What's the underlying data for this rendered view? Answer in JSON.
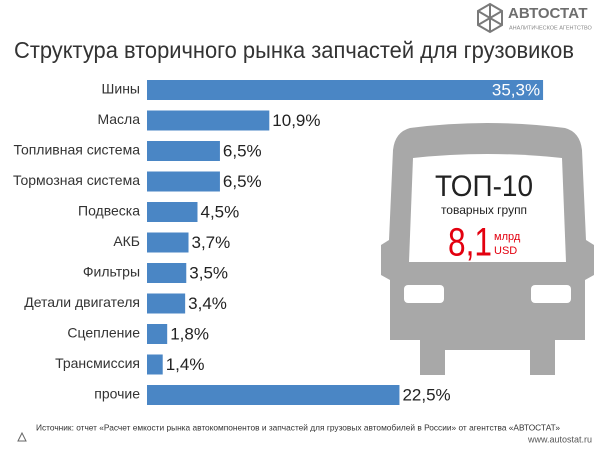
{
  "chart_data": {
    "type": "bar",
    "orientation": "horizontal",
    "title": "Структура вторичного рынка запчастей для грузовиков",
    "categories": [
      "Шины",
      "Масла",
      "Топливная система",
      "Тормозная система",
      "Подвеска",
      "АКБ",
      "Фильтры",
      "Детали двигателя",
      "Сцепление",
      "Трансмиссия",
      "прочие"
    ],
    "values": [
      35.3,
      10.9,
      6.5,
      6.5,
      4.5,
      3.7,
      3.5,
      3.4,
      1.8,
      1.4,
      22.5
    ],
    "value_labels": [
      "35,3%",
      "10,9%",
      "6,5%",
      "6,5%",
      "4,5%",
      "3,7%",
      "3,5%",
      "3,4%",
      "1,8%",
      "1,4%",
      "22,5%"
    ],
    "color": "#4a86c5",
    "annotations": {
      "top": "ТОП-10",
      "groups": "товарных групп",
      "amount": "8,1",
      "unit1": "млрд",
      "unit2": "USD"
    },
    "source": "Источник: отчет «Расчет емкости рынка автокомпонентов и запчастей для грузовых автомобилей в России» от агентства «АВТОСТАТ»",
    "logo": {
      "name": "АВТОСТАТ",
      "tagline": "АНАЛИТИЧЕСКОЕ АГЕНТСТВО"
    },
    "website": "www.autostat.ru"
  }
}
